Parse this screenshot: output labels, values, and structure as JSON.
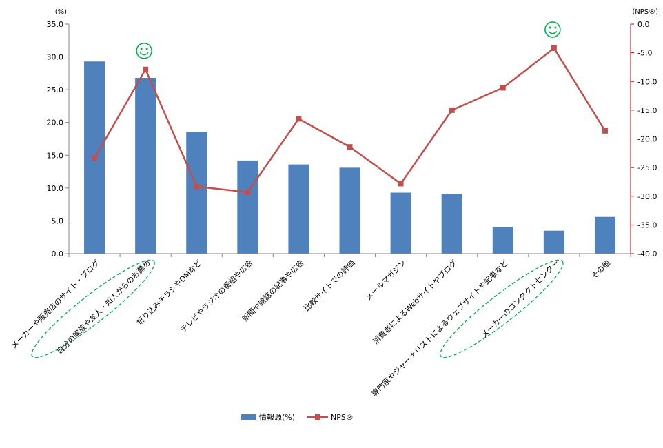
{
  "chart_data": {
    "type": "bar+line",
    "categories": [
      "メーカーや販売店のサイト・ブログ",
      "自分の家族や友人・知人からのお薦め",
      "折り込みチラシやDMなど",
      "テレビやラジオの番組や広告",
      "新聞や雑誌の記事や広告",
      "比較サイトでの評価",
      "メールマガジン",
      "消費者によるWebサイトやブログ",
      "専門家やジャーナリストによるウェブサイトや記事など",
      "メーカーのコンタクトセンター",
      "その他"
    ],
    "series": [
      {
        "name": "情報源(%)",
        "type": "bar",
        "axis": "left",
        "color": "#4f81bd",
        "values": [
          29.3,
          26.8,
          18.5,
          14.2,
          13.6,
          13.1,
          9.3,
          9.1,
          4.1,
          3.5,
          5.6
        ]
      },
      {
        "name": "NPS®",
        "type": "line",
        "axis": "right",
        "color": "#c0504d",
        "values": [
          -23.4,
          -7.9,
          -28.3,
          -29.3,
          -16.5,
          -21.4,
          -27.8,
          -15.0,
          -11.1,
          -4.2,
          -18.6
        ]
      }
    ],
    "y_left": {
      "unit_label": "(%)",
      "range": [
        0,
        35
      ],
      "ticks": [
        "0.0",
        "5.0",
        "10.0",
        "15.0",
        "20.0",
        "25.0",
        "30.0",
        "35.0"
      ]
    },
    "y_right": {
      "unit_label": "(NPS®)",
      "range": [
        -40,
        0
      ],
      "ticks": [
        "0.0",
        "-5.0",
        "-10.0",
        "-15.0",
        "-20.0",
        "-25.0",
        "-30.0",
        "-35.0",
        "-40.0"
      ],
      "color": "#c00000"
    },
    "grid": false,
    "legend_position": "bottom",
    "highlights": {
      "indices": [
        1,
        9
      ],
      "icon": "smiley-icon",
      "color": "#00b050"
    }
  }
}
